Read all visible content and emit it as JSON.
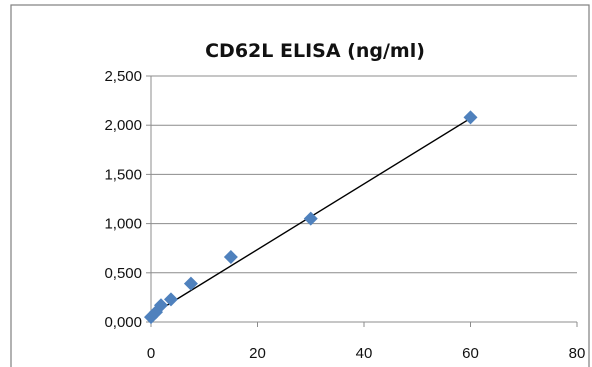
{
  "chart_data": {
    "type": "scatter",
    "title": "CD62L ELISA (ng/ml)",
    "xlabel": "",
    "ylabel": "",
    "xlim": [
      0,
      80
    ],
    "ylim": [
      0,
      2.5
    ],
    "x_ticks": [
      0,
      20,
      40,
      60,
      80
    ],
    "y_ticks": [
      0,
      0.5,
      1,
      1.5,
      2,
      2.5
    ],
    "x_tick_labels": [
      "0",
      "20",
      "40",
      "60",
      "80"
    ],
    "y_tick_labels": [
      "0,000",
      "0,500",
      "1,000",
      "1,500",
      "2,000",
      "2,500"
    ],
    "grid": "horizontal",
    "legend": "none",
    "marker": "diamond",
    "marker_color": "#4f81bd",
    "series": [
      {
        "x": [
          0,
          0.94,
          1.875,
          3.75,
          7.5,
          15,
          30,
          60
        ],
        "y": [
          0.05,
          0.1,
          0.17,
          0.23,
          0.39,
          0.66,
          1.05,
          2.08
        ]
      }
    ],
    "trendline": {
      "type": "linear",
      "x": [
        0,
        60
      ],
      "y": [
        0.07,
        2.07
      ],
      "color": "#000000"
    }
  }
}
